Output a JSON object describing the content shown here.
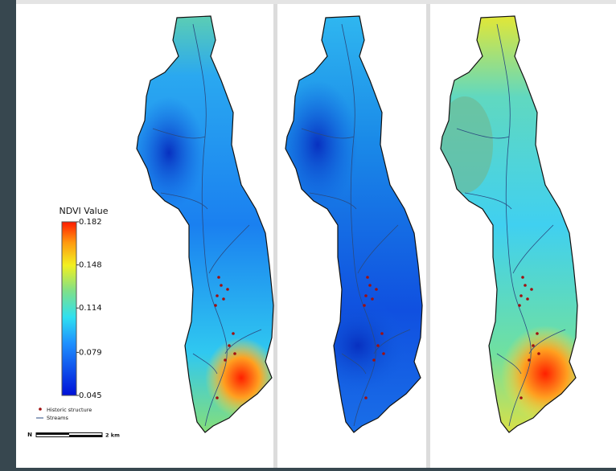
{
  "legend": {
    "title": "NDVI Value",
    "colorbar": {
      "lim": [
        0.045,
        0.182
      ],
      "ticks": [
        0.182,
        0.148,
        0.114,
        0.079,
        0.045
      ]
    },
    "items": [
      "Historic structure",
      "Streams"
    ]
  },
  "scale_bar": {
    "label": "2 km"
  },
  "north_arrow": "N"
}
